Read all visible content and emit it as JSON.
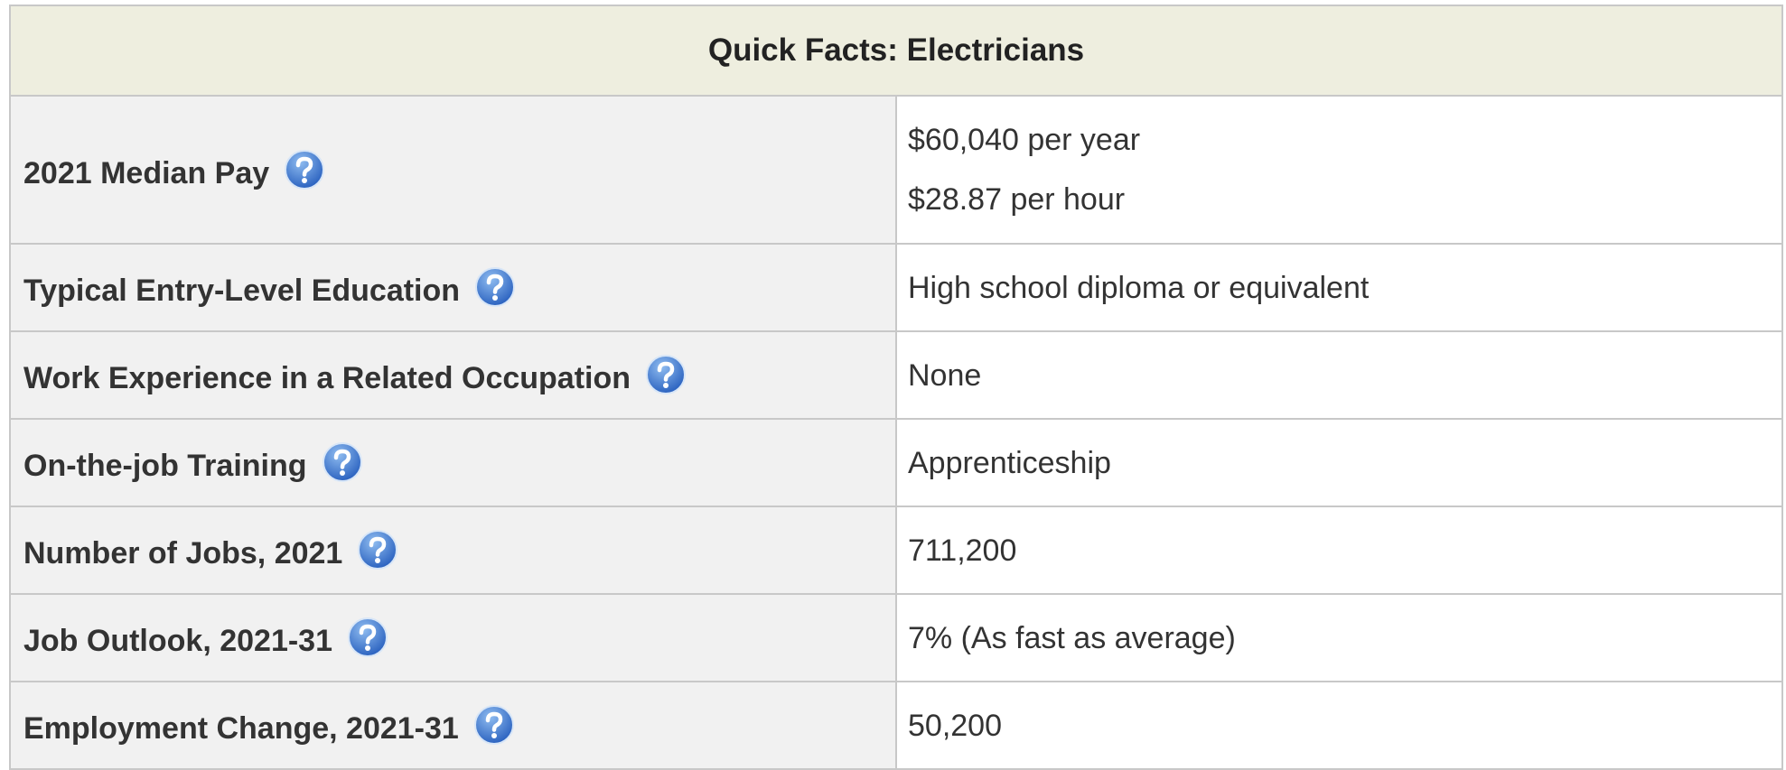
{
  "table": {
    "title": "Quick Facts: Electricians",
    "rows": [
      {
        "label": "2021 Median Pay",
        "values": [
          "$60,040 per year",
          "$28.87 per hour"
        ]
      },
      {
        "label": "Typical Entry-Level Education",
        "values": [
          "High school diploma or equivalent"
        ]
      },
      {
        "label": "Work Experience in a Related Occupation",
        "values": [
          "None"
        ]
      },
      {
        "label": "On-the-job Training",
        "values": [
          "Apprenticeship"
        ]
      },
      {
        "label": "Number of Jobs, 2021",
        "values": [
          "711,200"
        ]
      },
      {
        "label": "Job Outlook, 2021-31",
        "values": [
          "7% (As fast as average)"
        ]
      },
      {
        "label": "Employment Change, 2021-31",
        "values": [
          "50,200"
        ]
      }
    ]
  }
}
